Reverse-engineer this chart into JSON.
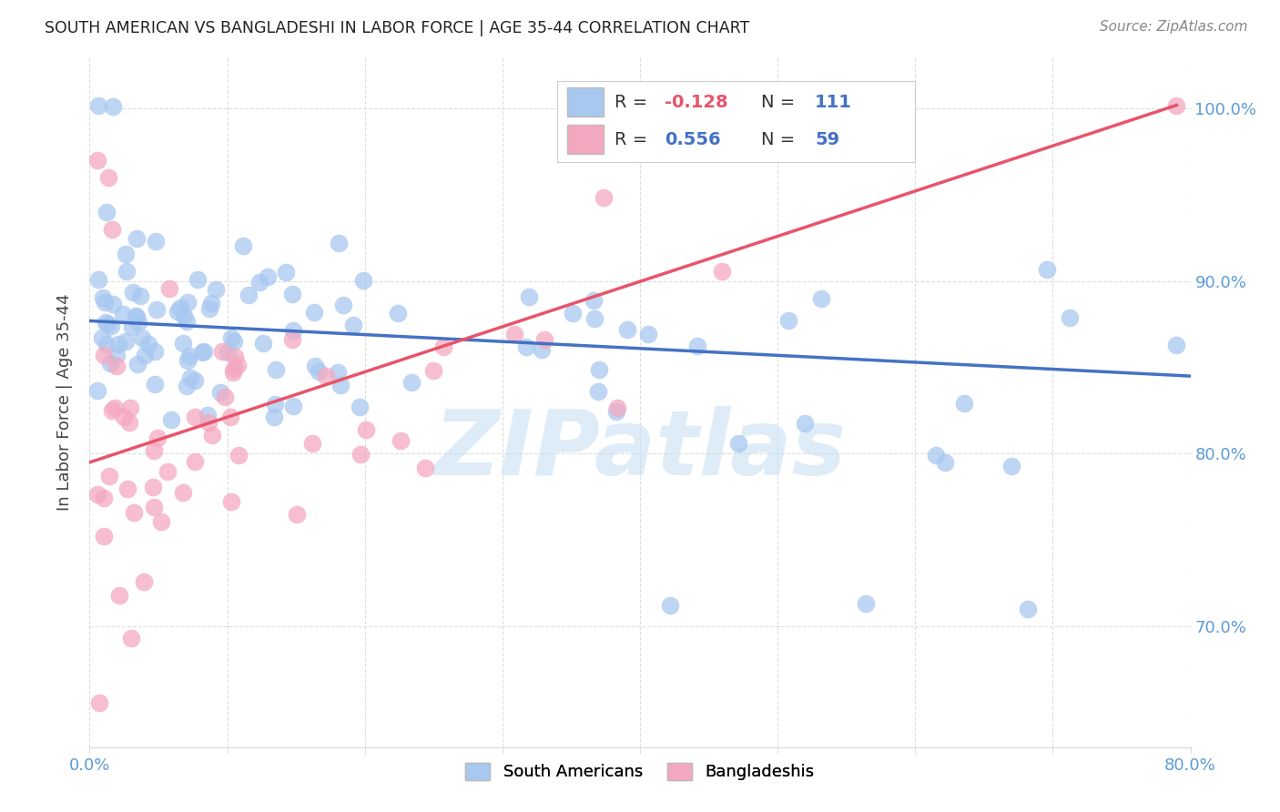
{
  "title": "SOUTH AMERICAN VS BANGLADESHI IN LABOR FORCE | AGE 35-44 CORRELATION CHART",
  "source": "Source: ZipAtlas.com",
  "ylabel_label": "In Labor Force | Age 35-44",
  "xlim": [
    0.0,
    0.8
  ],
  "ylim": [
    0.63,
    1.03
  ],
  "blue_color": "#A8C8F0",
  "pink_color": "#F4A8C0",
  "blue_line_color": "#4472C4",
  "pink_line_color": "#E8546A",
  "blue_R": -0.128,
  "blue_N": 111,
  "pink_R": 0.556,
  "pink_N": 59,
  "blue_line_x0": 0.0,
  "blue_line_y0": 0.877,
  "blue_line_x1": 0.8,
  "blue_line_y1": 0.845,
  "pink_line_x0": 0.0,
  "pink_line_y0": 0.795,
  "pink_line_x1": 0.79,
  "pink_line_y1": 1.002,
  "watermark": "ZIPatlas",
  "south_americans_label": "South Americans",
  "bangladeshis_label": "Bangladeshis"
}
